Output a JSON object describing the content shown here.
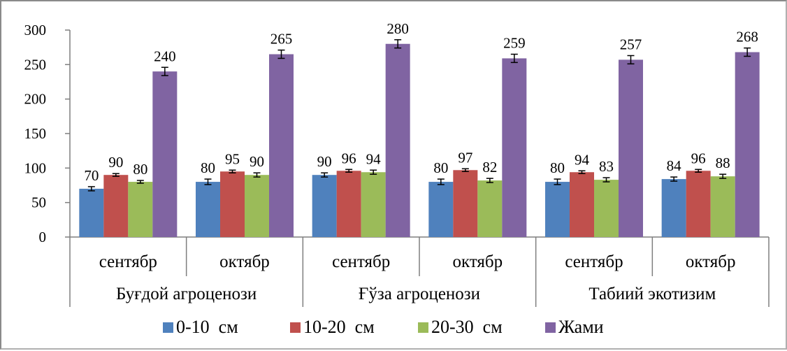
{
  "chart_data": {
    "type": "bar",
    "title": "",
    "xlabel": "",
    "ylabel": "",
    "ylim": [
      0,
      300
    ],
    "yticks": [
      "0",
      "50",
      "100",
      "150",
      "200",
      "250",
      "300"
    ],
    "grid": false,
    "legend_position": "bottom",
    "groups": [
      "Буғдой агроценози",
      "Ғўза агроценози",
      "Табиий экотизим"
    ],
    "categories": [
      "сентябр",
      "октябр",
      "сентябр",
      "октябр",
      "сентябр",
      "октябр"
    ],
    "series": [
      {
        "name": "0-10  см",
        "color": "#4F81BD",
        "values": [
          70,
          80,
          90,
          80,
          80,
          84
        ],
        "errors": [
          3,
          4,
          3,
          4,
          4,
          3
        ]
      },
      {
        "name": "10-20  см",
        "color": "#C0504D",
        "values": [
          90,
          95,
          96,
          97,
          94,
          96
        ],
        "errors": [
          2,
          2,
          2,
          2,
          2,
          2
        ]
      },
      {
        "name": "20-30  см",
        "color": "#9BBB59",
        "values": [
          80,
          90,
          94,
          82,
          83,
          88
        ],
        "errors": [
          2,
          3,
          3,
          3,
          3,
          3
        ]
      },
      {
        "name": "Жами",
        "color": "#8064A2",
        "values": [
          240,
          265,
          280,
          259,
          257,
          268
        ],
        "errors": [
          6,
          6,
          6,
          6,
          6,
          6
        ]
      }
    ]
  }
}
